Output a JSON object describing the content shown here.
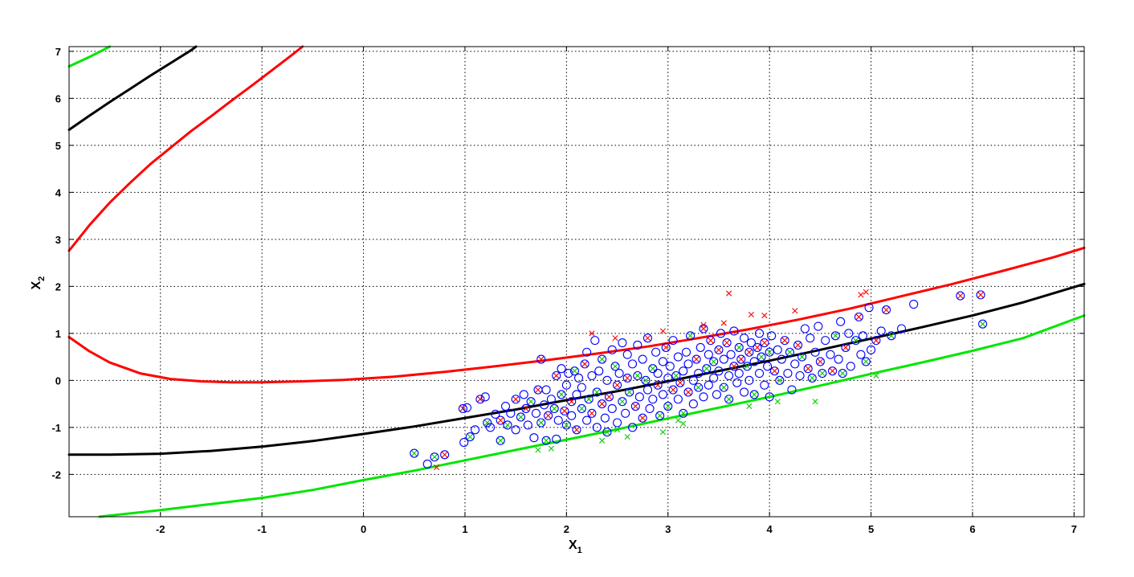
{
  "chart_data": {
    "type": "scatter",
    "title": "",
    "xlabel": "X",
    "xlabel_sub": "1",
    "ylabel": "X",
    "ylabel_sub": "2",
    "xlim": [
      -2.9,
      7.1
    ],
    "ylim": [
      -2.9,
      7.1
    ],
    "grid": true,
    "xticks": [
      -2,
      -1,
      0,
      1,
      2,
      3,
      4,
      5,
      6,
      7
    ],
    "yticks": [
      -2,
      -1,
      0,
      1,
      2,
      3,
      4,
      5,
      6,
      7
    ],
    "colors": {
      "red": "#ff0000",
      "black": "#000000",
      "green": "#00e600",
      "blue": "#0000ff",
      "green_point": "#00cc00"
    },
    "curves": [
      {
        "color": "#ff0000",
        "points": [
          [
            -2.9,
            0.92
          ],
          [
            -2.7,
            0.62
          ],
          [
            -2.5,
            0.38
          ],
          [
            -2.2,
            0.15
          ],
          [
            -1.9,
            0.03
          ],
          [
            -1.6,
            -0.02
          ],
          [
            -1.3,
            -0.04
          ],
          [
            -1.0,
            -0.04
          ],
          [
            -0.6,
            -0.02
          ],
          [
            -0.2,
            0.01
          ],
          [
            0.3,
            0.08
          ],
          [
            0.8,
            0.18
          ],
          [
            1.3,
            0.3
          ],
          [
            1.8,
            0.43
          ],
          [
            2.3,
            0.57
          ],
          [
            2.8,
            0.72
          ],
          [
            3.3,
            0.9
          ],
          [
            3.8,
            1.09
          ],
          [
            4.3,
            1.3
          ],
          [
            4.8,
            1.53
          ],
          [
            5.3,
            1.79
          ],
          [
            5.8,
            2.05
          ],
          [
            6.3,
            2.33
          ],
          [
            6.8,
            2.62
          ],
          [
            7.1,
            2.82
          ]
        ]
      },
      {
        "color": "#ff0000",
        "points": [
          [
            -2.9,
            2.76
          ],
          [
            -2.7,
            3.3
          ],
          [
            -2.5,
            3.78
          ],
          [
            -2.3,
            4.2
          ],
          [
            -2.1,
            4.6
          ],
          [
            -1.9,
            4.95
          ],
          [
            -1.7,
            5.3
          ],
          [
            -1.5,
            5.62
          ],
          [
            -1.3,
            5.95
          ],
          [
            -1.1,
            6.27
          ],
          [
            -0.9,
            6.6
          ],
          [
            -0.7,
            6.93
          ],
          [
            -0.6,
            7.1
          ]
        ]
      },
      {
        "color": "#000000",
        "points": [
          [
            -2.9,
            -1.58
          ],
          [
            -2.5,
            -1.58
          ],
          [
            -2.0,
            -1.56
          ],
          [
            -1.5,
            -1.5
          ],
          [
            -1.0,
            -1.41
          ],
          [
            -0.5,
            -1.29
          ],
          [
            0.0,
            -1.14
          ],
          [
            0.5,
            -0.98
          ],
          [
            1.0,
            -0.8
          ],
          [
            1.5,
            -0.62
          ],
          [
            2.0,
            -0.42
          ],
          [
            2.5,
            -0.23
          ],
          [
            3.0,
            -0.02
          ],
          [
            3.5,
            0.2
          ],
          [
            4.0,
            0.42
          ],
          [
            4.5,
            0.65
          ],
          [
            5.0,
            0.89
          ],
          [
            5.5,
            1.13
          ],
          [
            6.0,
            1.38
          ],
          [
            6.5,
            1.66
          ],
          [
            7.1,
            2.05
          ]
        ]
      },
      {
        "color": "#000000",
        "points": [
          [
            -2.9,
            5.33
          ],
          [
            -2.7,
            5.63
          ],
          [
            -2.5,
            5.92
          ],
          [
            -2.3,
            6.2
          ],
          [
            -2.1,
            6.48
          ],
          [
            -1.9,
            6.75
          ],
          [
            -1.7,
            7.02
          ],
          [
            -1.65,
            7.1
          ]
        ]
      },
      {
        "color": "#00e600",
        "points": [
          [
            -2.6,
            -2.9
          ],
          [
            -2.0,
            -2.76
          ],
          [
            -1.5,
            -2.63
          ],
          [
            -1.0,
            -2.5
          ],
          [
            -0.5,
            -2.33
          ],
          [
            0.0,
            -2.12
          ],
          [
            0.5,
            -1.92
          ],
          [
            1.0,
            -1.7
          ],
          [
            1.5,
            -1.48
          ],
          [
            2.0,
            -1.26
          ],
          [
            2.5,
            -1.04
          ],
          [
            3.0,
            -0.81
          ],
          [
            3.5,
            -0.58
          ],
          [
            4.0,
            -0.35
          ],
          [
            4.5,
            -0.11
          ],
          [
            5.0,
            0.14
          ],
          [
            5.5,
            0.38
          ],
          [
            6.0,
            0.63
          ],
          [
            6.5,
            0.9
          ],
          [
            7.1,
            1.38
          ]
        ]
      },
      {
        "color": "#00e600",
        "points": [
          [
            -2.9,
            6.68
          ],
          [
            -2.7,
            6.88
          ],
          [
            -2.5,
            7.1
          ]
        ]
      }
    ],
    "points": [
      [
        0.5,
        -1.55,
        "g"
      ],
      [
        0.63,
        -1.78,
        "n"
      ],
      [
        0.7,
        -1.63,
        "g"
      ],
      [
        0.8,
        -1.58,
        "r"
      ],
      [
        0.72,
        -1.85,
        "X"
      ],
      [
        0.98,
        -0.6,
        "r"
      ],
      [
        1.02,
        -0.58,
        "n"
      ],
      [
        0.99,
        -1.32,
        "n"
      ],
      [
        1.05,
        -1.2,
        "g"
      ],
      [
        1.1,
        -1.05,
        "n"
      ],
      [
        1.15,
        -0.4,
        "r"
      ],
      [
        1.2,
        -0.35,
        "n"
      ],
      [
        1.22,
        -0.9,
        "g"
      ],
      [
        1.25,
        -1.0,
        "n"
      ],
      [
        1.3,
        -0.72,
        "n"
      ],
      [
        1.35,
        -1.28,
        "g"
      ],
      [
        1.35,
        -0.85,
        "r"
      ],
      [
        1.4,
        -0.55,
        "n"
      ],
      [
        1.42,
        -0.95,
        "g"
      ],
      [
        1.45,
        -0.7,
        "n"
      ],
      [
        1.5,
        -0.4,
        "r"
      ],
      [
        1.5,
        -1.05,
        "n"
      ],
      [
        1.55,
        -0.78,
        "g"
      ],
      [
        1.58,
        -0.3,
        "n"
      ],
      [
        1.6,
        -0.6,
        "r"
      ],
      [
        1.62,
        -0.95,
        "n"
      ],
      [
        1.65,
        -0.45,
        "g"
      ],
      [
        1.68,
        -1.22,
        "n"
      ],
      [
        1.7,
        -0.7,
        "n"
      ],
      [
        1.72,
        -0.2,
        "r"
      ],
      [
        1.75,
        -0.9,
        "g"
      ],
      [
        1.75,
        0.45,
        "r"
      ],
      [
        1.78,
        -0.52,
        "n"
      ],
      [
        1.8,
        -0.2,
        "n"
      ],
      [
        1.8,
        -1.28,
        "g"
      ],
      [
        1.82,
        -0.75,
        "r"
      ],
      [
        1.85,
        -0.4,
        "n"
      ],
      [
        1.88,
        -0.6,
        "g"
      ],
      [
        1.9,
        -1.25,
        "n"
      ],
      [
        1.9,
        0.1,
        "r"
      ],
      [
        1.92,
        -0.85,
        "n"
      ],
      [
        1.95,
        -0.3,
        "g"
      ],
      [
        1.95,
        0.25,
        "n"
      ],
      [
        1.98,
        -0.65,
        "r"
      ],
      [
        2.0,
        -0.1,
        "n"
      ],
      [
        2.0,
        -0.95,
        "g"
      ],
      [
        2.02,
        0.15,
        "n"
      ],
      [
        2.05,
        -0.45,
        "r"
      ],
      [
        2.05,
        -0.75,
        "n"
      ],
      [
        2.08,
        0.2,
        "g"
      ],
      [
        2.1,
        -0.3,
        "n"
      ],
      [
        2.1,
        -1.05,
        "r"
      ],
      [
        2.12,
        0.05,
        "n"
      ],
      [
        2.15,
        -0.6,
        "g"
      ],
      [
        2.15,
        -0.15,
        "n"
      ],
      [
        2.18,
        0.35,
        "r"
      ],
      [
        2.2,
        -0.85,
        "n"
      ],
      [
        2.2,
        0.6,
        "n"
      ],
      [
        2.22,
        -0.4,
        "g"
      ],
      [
        2.25,
        0.1,
        "n"
      ],
      [
        2.25,
        -0.7,
        "r"
      ],
      [
        2.28,
        0.85,
        "n"
      ],
      [
        2.3,
        -0.25,
        "g"
      ],
      [
        2.3,
        -1.0,
        "n"
      ],
      [
        2.32,
        0.2,
        "n"
      ],
      [
        2.35,
        -0.5,
        "r"
      ],
      [
        2.35,
        0.45,
        "g"
      ],
      [
        2.38,
        -0.8,
        "n"
      ],
      [
        2.4,
        0.0,
        "n"
      ],
      [
        2.4,
        -1.1,
        "g"
      ],
      [
        2.42,
        -0.35,
        "r"
      ],
      [
        2.45,
        0.65,
        "n"
      ],
      [
        2.45,
        -0.6,
        "n"
      ],
      [
        2.48,
        0.3,
        "g"
      ],
      [
        2.5,
        -0.9,
        "n"
      ],
      [
        2.5,
        -0.1,
        "r"
      ],
      [
        2.52,
        0.15,
        "n"
      ],
      [
        2.55,
        -0.45,
        "g"
      ],
      [
        2.55,
        0.8,
        "n"
      ],
      [
        2.58,
        -0.7,
        "n"
      ],
      [
        2.6,
        0.05,
        "r"
      ],
      [
        2.6,
        0.55,
        "n"
      ],
      [
        2.62,
        -0.25,
        "g"
      ],
      [
        2.65,
        -1.0,
        "n"
      ],
      [
        2.65,
        0.35,
        "n"
      ],
      [
        2.68,
        -0.55,
        "r"
      ],
      [
        2.7,
        0.1,
        "g"
      ],
      [
        2.7,
        0.75,
        "n"
      ],
      [
        2.72,
        -0.35,
        "n"
      ],
      [
        2.75,
        -0.8,
        "r"
      ],
      [
        2.75,
        0.45,
        "n"
      ],
      [
        2.78,
        0.0,
        "g"
      ],
      [
        2.8,
        -0.2,
        "n"
      ],
      [
        2.8,
        0.9,
        "r"
      ],
      [
        2.82,
        -0.6,
        "n"
      ],
      [
        2.85,
        0.25,
        "g"
      ],
      [
        2.85,
        -0.4,
        "n"
      ],
      [
        2.88,
        0.6,
        "n"
      ],
      [
        2.9,
        -0.1,
        "r"
      ],
      [
        2.9,
        0.15,
        "n"
      ],
      [
        2.92,
        -0.75,
        "g"
      ],
      [
        2.95,
        0.4,
        "n"
      ],
      [
        2.95,
        -0.3,
        "n"
      ],
      [
        2.98,
        0.7,
        "r"
      ],
      [
        3.0,
        0.05,
        "n"
      ],
      [
        3.0,
        -0.55,
        "g"
      ],
      [
        3.02,
        0.3,
        "n"
      ],
      [
        3.05,
        -0.2,
        "r"
      ],
      [
        3.05,
        0.85,
        "n"
      ],
      [
        3.08,
        0.1,
        "g"
      ],
      [
        3.1,
        -0.4,
        "n"
      ],
      [
        3.1,
        0.5,
        "n"
      ],
      [
        3.12,
        -0.05,
        "r"
      ],
      [
        3.15,
        0.2,
        "n"
      ],
      [
        3.15,
        -0.7,
        "g"
      ],
      [
        3.18,
        0.6,
        "n"
      ],
      [
        3.2,
        -0.25,
        "r"
      ],
      [
        3.2,
        0.35,
        "n"
      ],
      [
        3.22,
        0.95,
        "g"
      ],
      [
        3.25,
        0.0,
        "n"
      ],
      [
        3.25,
        -0.5,
        "n"
      ],
      [
        3.28,
        0.45,
        "r"
      ],
      [
        3.3,
        0.15,
        "n"
      ],
      [
        3.3,
        -0.15,
        "g"
      ],
      [
        3.32,
        0.7,
        "n"
      ],
      [
        3.35,
        -0.35,
        "n"
      ],
      [
        3.35,
        1.1,
        "r"
      ],
      [
        3.38,
        0.25,
        "g"
      ],
      [
        3.4,
        0.55,
        "n"
      ],
      [
        3.4,
        -0.1,
        "n"
      ],
      [
        3.42,
        0.85,
        "r"
      ],
      [
        3.45,
        0.05,
        "n"
      ],
      [
        3.45,
        0.4,
        "g"
      ],
      [
        3.48,
        -0.3,
        "n"
      ],
      [
        3.5,
        0.65,
        "r"
      ],
      [
        3.5,
        0.2,
        "n"
      ],
      [
        3.52,
        1.0,
        "n"
      ],
      [
        3.55,
        -0.15,
        "g"
      ],
      [
        3.55,
        0.45,
        "n"
      ],
      [
        3.58,
        0.8,
        "r"
      ],
      [
        3.6,
        0.1,
        "n"
      ],
      [
        3.6,
        -0.4,
        "g"
      ],
      [
        3.62,
        0.55,
        "n"
      ],
      [
        3.65,
        0.3,
        "r"
      ],
      [
        3.65,
        1.05,
        "n"
      ],
      [
        3.68,
        -0.05,
        "n"
      ],
      [
        3.7,
        0.7,
        "g"
      ],
      [
        3.7,
        0.15,
        "n"
      ],
      [
        3.72,
        0.45,
        "r"
      ],
      [
        3.75,
        -0.25,
        "n"
      ],
      [
        3.75,
        0.9,
        "n"
      ],
      [
        3.78,
        0.3,
        "g"
      ],
      [
        3.8,
        0.6,
        "r"
      ],
      [
        3.8,
        0.0,
        "n"
      ],
      [
        3.82,
        0.8,
        "n"
      ],
      [
        3.85,
        -0.3,
        "g"
      ],
      [
        3.85,
        0.4,
        "n"
      ],
      [
        3.88,
        0.7,
        "r"
      ],
      [
        3.9,
        0.15,
        "n"
      ],
      [
        3.9,
        1.0,
        "n"
      ],
      [
        3.92,
        0.5,
        "g"
      ],
      [
        3.95,
        -0.1,
        "n"
      ],
      [
        3.95,
        0.8,
        "r"
      ],
      [
        3.98,
        0.3,
        "n"
      ],
      [
        4.0,
        0.6,
        "g"
      ],
      [
        4.0,
        -0.35,
        "n"
      ],
      [
        4.02,
        0.95,
        "n"
      ],
      [
        4.05,
        0.2,
        "r"
      ],
      [
        4.08,
        0.65,
        "n"
      ],
      [
        4.1,
        0.0,
        "g"
      ],
      [
        4.12,
        0.45,
        "n"
      ],
      [
        4.15,
        0.85,
        "r"
      ],
      [
        4.18,
        0.15,
        "n"
      ],
      [
        4.2,
        0.6,
        "g"
      ],
      [
        4.22,
        -0.2,
        "n"
      ],
      [
        4.25,
        0.35,
        "n"
      ],
      [
        4.28,
        0.75,
        "r"
      ],
      [
        4.3,
        0.1,
        "n"
      ],
      [
        4.32,
        0.5,
        "g"
      ],
      [
        4.35,
        1.1,
        "n"
      ],
      [
        4.38,
        0.25,
        "r"
      ],
      [
        4.4,
        0.9,
        "n"
      ],
      [
        4.42,
        0.05,
        "g"
      ],
      [
        4.45,
        0.6,
        "n"
      ],
      [
        4.48,
        1.15,
        "n"
      ],
      [
        4.5,
        0.4,
        "r"
      ],
      [
        4.52,
        0.15,
        "g"
      ],
      [
        4.55,
        0.85,
        "n"
      ],
      [
        4.6,
        0.55,
        "n"
      ],
      [
        4.62,
        0.2,
        "r"
      ],
      [
        4.65,
        0.95,
        "g"
      ],
      [
        4.68,
        0.45,
        "n"
      ],
      [
        4.7,
        1.25,
        "n"
      ],
      [
        4.72,
        0.15,
        "g"
      ],
      [
        4.75,
        0.7,
        "r"
      ],
      [
        4.78,
        1.0,
        "n"
      ],
      [
        4.8,
        0.3,
        "n"
      ],
      [
        4.85,
        0.85,
        "g"
      ],
      [
        4.88,
        1.35,
        "r"
      ],
      [
        4.9,
        0.55,
        "n"
      ],
      [
        4.92,
        0.95,
        "n"
      ],
      [
        4.95,
        0.4,
        "g"
      ],
      [
        4.98,
        1.55,
        "n"
      ],
      [
        5.0,
        0.65,
        "n"
      ],
      [
        5.05,
        0.85,
        "r"
      ],
      [
        5.1,
        1.05,
        "n"
      ],
      [
        5.15,
        1.5,
        "r"
      ],
      [
        5.2,
        0.95,
        "g"
      ],
      [
        5.3,
        1.1,
        "n"
      ],
      [
        5.42,
        1.62,
        "n"
      ],
      [
        5.88,
        1.8,
        "r"
      ],
      [
        6.08,
        1.82,
        "r"
      ],
      [
        6.1,
        1.2,
        "g"
      ],
      [
        2.25,
        1.0,
        "X"
      ],
      [
        2.48,
        0.9,
        "X"
      ],
      [
        2.95,
        1.05,
        "X"
      ],
      [
        3.35,
        1.18,
        "X"
      ],
      [
        3.55,
        1.22,
        "X"
      ],
      [
        3.6,
        1.85,
        "X"
      ],
      [
        3.82,
        1.4,
        "X"
      ],
      [
        3.95,
        1.38,
        "X"
      ],
      [
        4.25,
        1.48,
        "X"
      ],
      [
        4.9,
        1.82,
        "X"
      ],
      [
        4.95,
        1.88,
        "X"
      ],
      [
        1.72,
        -1.48,
        "G"
      ],
      [
        1.85,
        -1.45,
        "G"
      ],
      [
        2.35,
        -1.28,
        "G"
      ],
      [
        2.5,
        -1.05,
        "G"
      ],
      [
        2.6,
        -1.2,
        "G"
      ],
      [
        2.95,
        -1.1,
        "G"
      ],
      [
        3.1,
        -0.85,
        "G"
      ],
      [
        3.15,
        -0.92,
        "G"
      ],
      [
        3.8,
        -0.55,
        "G"
      ],
      [
        4.08,
        -0.45,
        "G"
      ],
      [
        4.45,
        -0.45,
        "G"
      ],
      [
        5.05,
        0.1,
        "G"
      ]
    ]
  }
}
